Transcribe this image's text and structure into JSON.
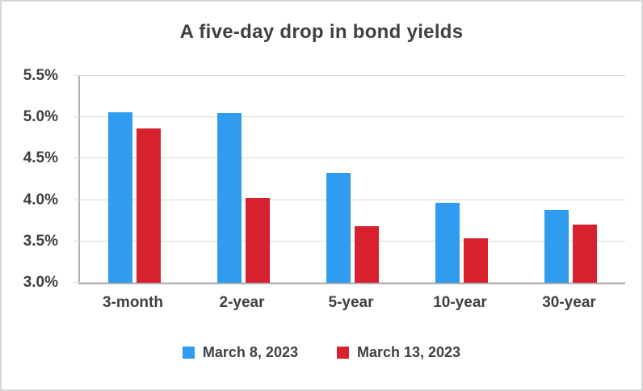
{
  "chart_data": {
    "type": "bar",
    "title": "A five-day drop in bond yields",
    "categories": [
      "3-month",
      "2-year",
      "5-year",
      "10-year",
      "30-year"
    ],
    "series": [
      {
        "name": "March 8, 2023",
        "color": "#2f9cf0",
        "values": [
          5.06,
          5.05,
          4.33,
          3.97,
          3.88
        ]
      },
      {
        "name": "March 13, 2023",
        "color": "#d7212f",
        "values": [
          4.87,
          4.03,
          3.68,
          3.54,
          3.7
        ]
      }
    ],
    "ylim": [
      3.0,
      5.5
    ],
    "yticks": [
      "3.0%",
      "3.5%",
      "4.0%",
      "4.5%",
      "5.0%",
      "5.5%"
    ],
    "ytick_values": [
      3.0,
      3.5,
      4.0,
      4.5,
      5.0,
      5.5
    ],
    "xlabel": "",
    "ylabel": "",
    "grid": true,
    "legend_position": "bottom"
  }
}
